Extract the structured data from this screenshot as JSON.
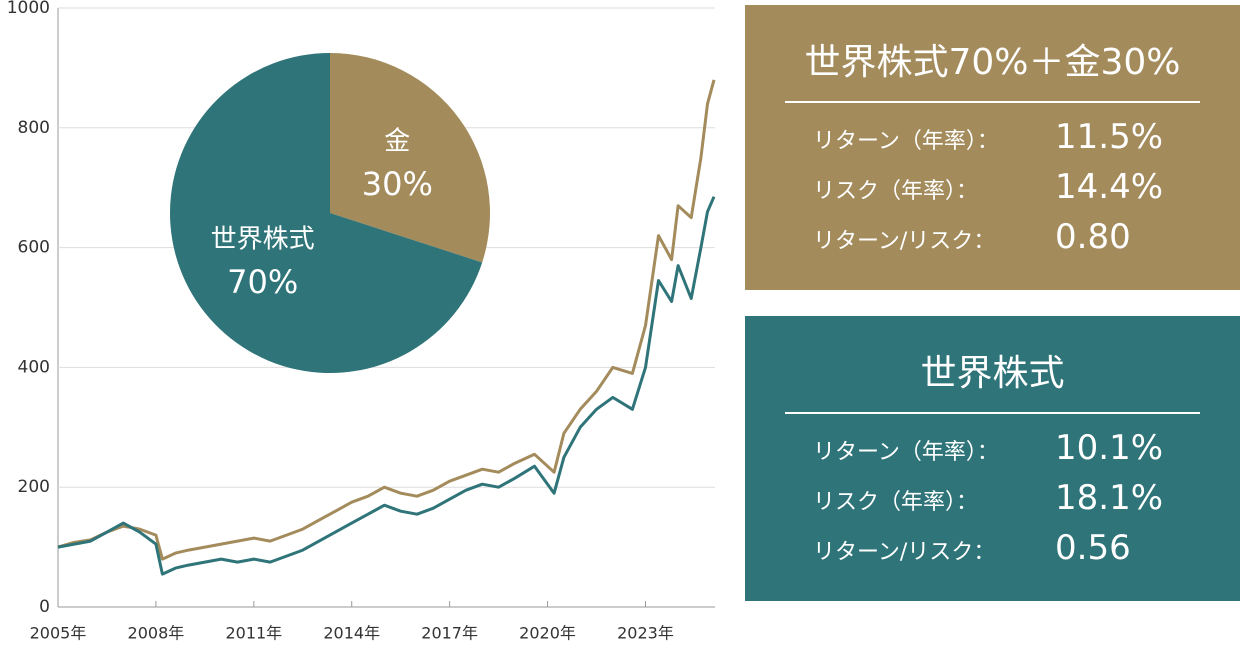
{
  "chart_data": [
    {
      "type": "line",
      "x": [
        2005,
        2005.5,
        2006,
        2006.5,
        2007,
        2007.5,
        2008,
        2008.2,
        2008.6,
        2009,
        2009.5,
        2010,
        2010.5,
        2011,
        2011.5,
        2012,
        2012.5,
        2013,
        2013.5,
        2014,
        2014.5,
        2015,
        2015.5,
        2016,
        2016.5,
        2017,
        2017.5,
        2018,
        2018.5,
        2019,
        2019.6,
        2020.2,
        2020.5,
        2021,
        2021.5,
        2022,
        2022.6,
        2023,
        2023.4,
        2023.8,
        2024,
        2024.4,
        2024.7,
        2024.9,
        2025.1
      ],
      "series": [
        {
          "color": "#a38b5c",
          "values": [
            100,
            108,
            112,
            125,
            135,
            130,
            120,
            80,
            90,
            95,
            100,
            105,
            110,
            115,
            110,
            120,
            130,
            145,
            160,
            175,
            185,
            200,
            190,
            185,
            195,
            210,
            220,
            230,
            225,
            240,
            255,
            225,
            290,
            330,
            360,
            400,
            390,
            470,
            620,
            580,
            670,
            650,
            750,
            840,
            880
          ]
        },
        {
          "color": "#2e7479",
          "values": [
            100,
            105,
            110,
            125,
            140,
            125,
            105,
            55,
            65,
            70,
            75,
            80,
            75,
            80,
            75,
            85,
            95,
            110,
            125,
            140,
            155,
            170,
            160,
            155,
            165,
            180,
            195,
            205,
            200,
            215,
            235,
            190,
            250,
            300,
            330,
            350,
            330,
            400,
            545,
            510,
            570,
            515,
            600,
            660,
            685
          ]
        }
      ],
      "xlim": [
        2005,
        2025.1
      ],
      "xticks": [
        {
          "value": 2005,
          "label": "2005年"
        },
        {
          "value": 2008,
          "label": "2008年"
        },
        {
          "value": 2011,
          "label": "2011年"
        },
        {
          "value": 2014,
          "label": "2014年"
        },
        {
          "value": 2017,
          "label": "2017年"
        },
        {
          "value": 2020,
          "label": "2020年"
        },
        {
          "value": 2023,
          "label": "2023年"
        }
      ],
      "ylim": [
        0,
        1000
      ],
      "yticks": [
        0,
        200,
        400,
        600,
        800,
        1000
      ],
      "grid": true
    },
    {
      "type": "pie",
      "categories": [
        "金",
        "世界株式"
      ],
      "values": [
        30,
        70
      ],
      "value_labels": [
        "30%",
        "70%"
      ],
      "colors": [
        "#a38b5c",
        "#2e7479"
      ]
    }
  ],
  "panels": [
    {
      "title": "世界株式70%＋金30%",
      "color": "#a38b5c",
      "rows": [
        [
          "リターン（年率）：",
          "11.5%"
        ],
        [
          "リスク（年率）：",
          "14.4%"
        ],
        [
          "リターン/リスク：",
          "0.80"
        ]
      ]
    },
    {
      "title": "世界株式",
      "color": "#2e7479",
      "rows": [
        [
          "リターン（年率）：",
          "10.1%"
        ],
        [
          "リスク（年率）：",
          "18.1%"
        ],
        [
          "リターン/リスク：",
          "0.56"
        ]
      ]
    }
  ]
}
